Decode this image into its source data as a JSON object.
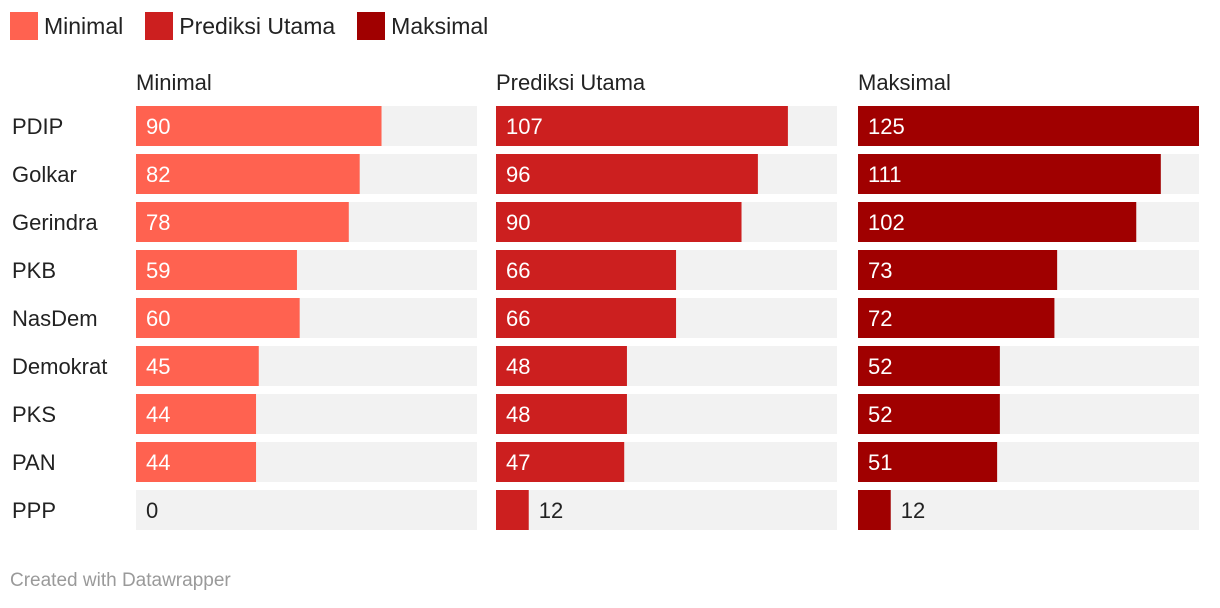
{
  "legend": [
    {
      "label": "Minimal",
      "color": "#ff6250"
    },
    {
      "label": "Prediksi Utama",
      "color": "#cc1f1f"
    },
    {
      "label": "Maksimal",
      "color": "#a00000"
    }
  ],
  "footer": "Created with Datawrapper",
  "chart_data": {
    "type": "bar",
    "orientation": "horizontal",
    "layout": "small-multiples",
    "categories": [
      "PDIP",
      "Golkar",
      "Gerindra",
      "PKB",
      "NasDem",
      "Demokrat",
      "PKS",
      "PAN",
      "PPP"
    ],
    "series": [
      {
        "name": "Minimal",
        "color": "#ff6250",
        "values": [
          90,
          82,
          78,
          59,
          60,
          45,
          44,
          44,
          0
        ]
      },
      {
        "name": "Prediksi Utama",
        "color": "#cc1f1f",
        "values": [
          107,
          96,
          90,
          66,
          66,
          48,
          48,
          47,
          12
        ]
      },
      {
        "name": "Maksimal",
        "color": "#a00000",
        "values": [
          125,
          111,
          102,
          73,
          72,
          52,
          52,
          51,
          12
        ]
      }
    ],
    "xlim": [
      0,
      125
    ],
    "grid": false,
    "legend_position": "top-left"
  }
}
